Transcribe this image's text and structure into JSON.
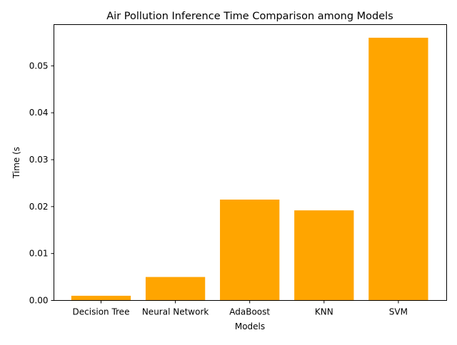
{
  "chart_data": {
    "type": "bar",
    "title": "Air Pollution Inference Time Comparison among Models",
    "xlabel": "Models",
    "ylabel": "Time (s",
    "categories": [
      "Decision Tree",
      "Neural Network",
      "AdaBoost",
      "KNN",
      "SVM"
    ],
    "values": [
      0.001,
      0.005,
      0.0215,
      0.0192,
      0.056
    ],
    "ylim": [
      0,
      0.0588
    ],
    "yticks": [
      "0.00",
      "0.01",
      "0.02",
      "0.03",
      "0.04",
      "0.05"
    ],
    "bar_color": "#ffa500",
    "grid": false,
    "legend": "none"
  }
}
